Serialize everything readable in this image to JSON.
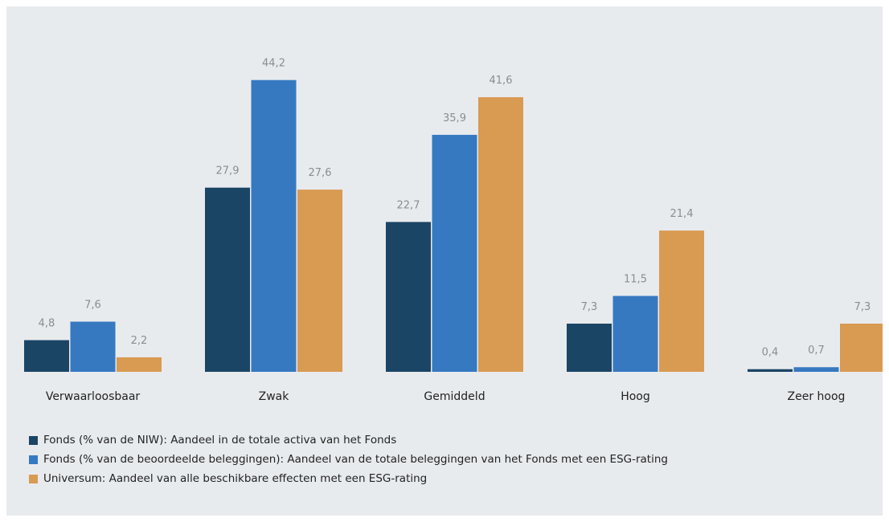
{
  "chart_data": {
    "type": "bar",
    "categories": [
      "Verwaarloosbaar",
      "Zwak",
      "Gemiddeld",
      "Hoog",
      "Zeer hoog"
    ],
    "series": [
      {
        "name": "Fonds (% van de NIW): Aandeel in de totale activa van het Fonds",
        "color": "#1b4565",
        "values": [
          4.8,
          27.9,
          22.7,
          7.3,
          0.4
        ],
        "labels": [
          "4,8",
          "27,9",
          "22,7",
          "7,3",
          "0,4"
        ]
      },
      {
        "name": "Fonds (% van de beoordeelde beleggingen): Aandeel van de totale beleggingen van het Fonds met een ESG-rating",
        "color": "#3679c1",
        "values": [
          7.6,
          44.2,
          35.9,
          11.5,
          0.7
        ],
        "labels": [
          "7,6",
          "44,2",
          "35,9",
          "11,5",
          "0,7"
        ]
      },
      {
        "name": "Universum: Aandeel van alle beschikbare effecten met een ESG-rating",
        "color": "#d99a52",
        "values": [
          2.2,
          27.6,
          41.6,
          21.4,
          7.3
        ],
        "labels": [
          "2,2",
          "27,6",
          "41,6",
          "21,4",
          "7,3"
        ]
      }
    ],
    "ylim": [
      0,
      50
    ],
    "legend_position": "bottom-left",
    "grid": false
  }
}
